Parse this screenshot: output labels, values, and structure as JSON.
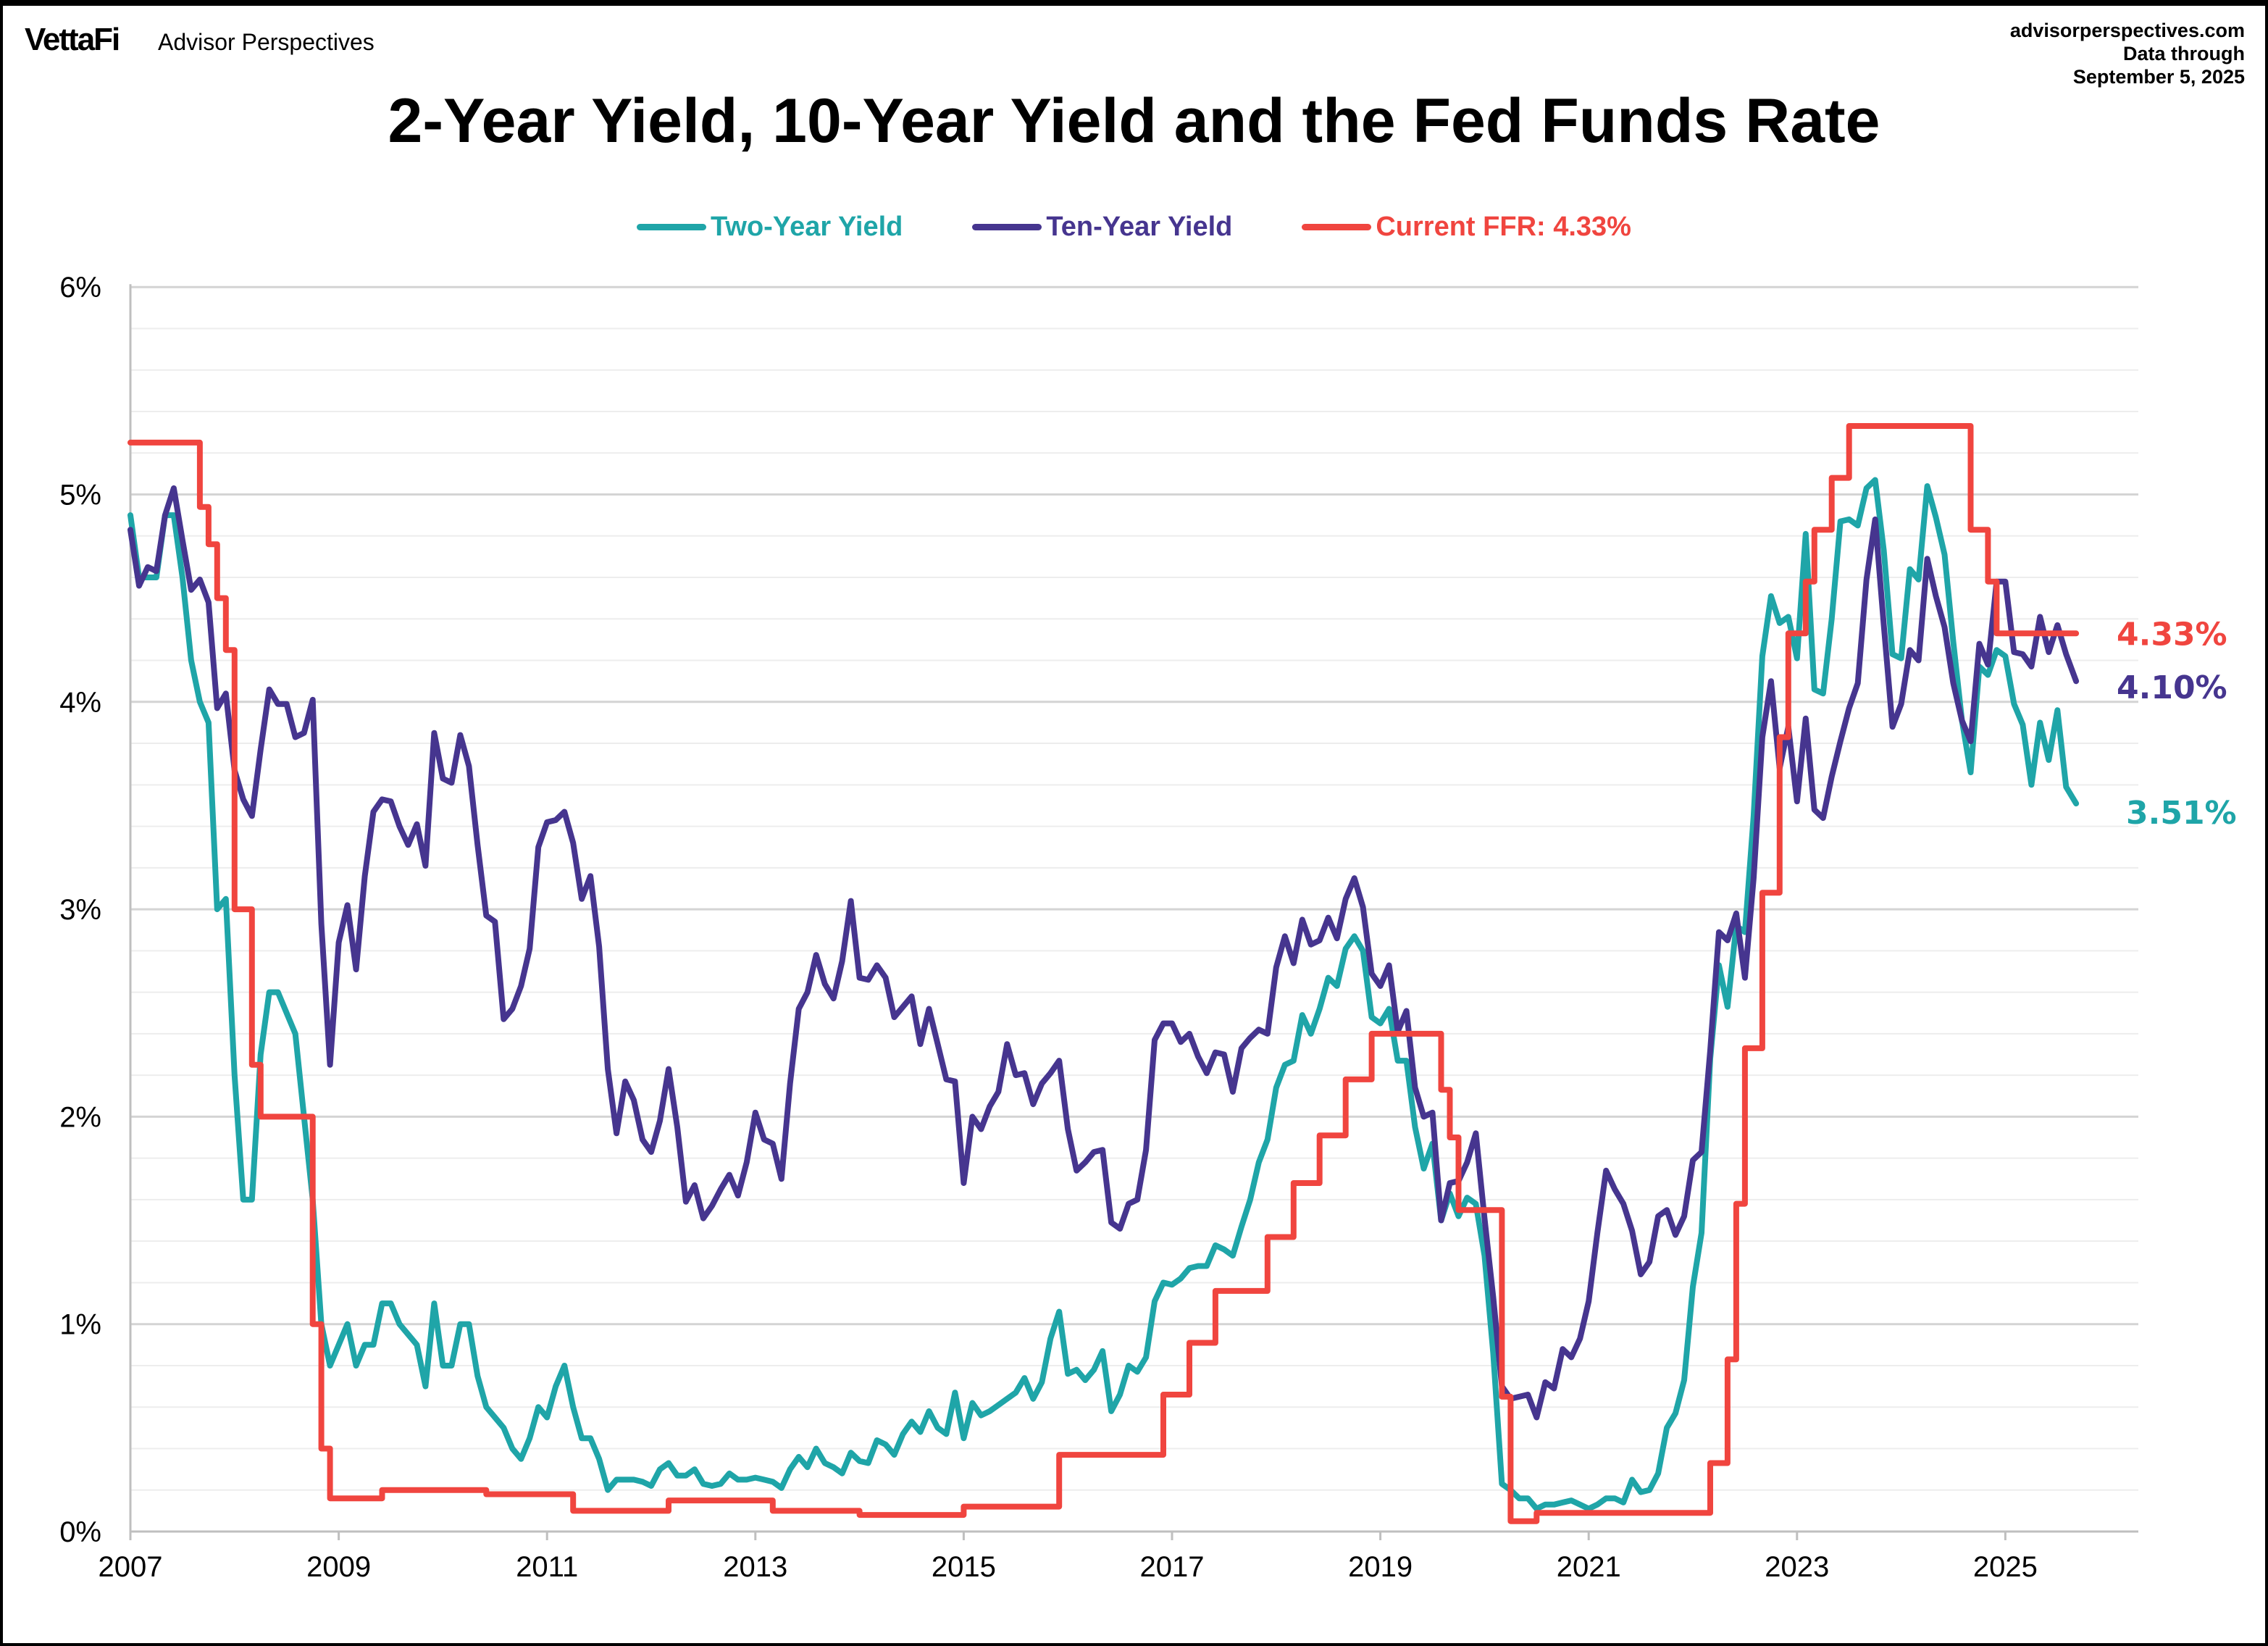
{
  "header": {
    "logo": "VettaFi",
    "brand": "Advisor Perspectives",
    "source_lines": [
      "advisorperspectives.com",
      "Data through",
      "September 5, 2025"
    ]
  },
  "colors": {
    "two_year": "#1FA5A8",
    "ten_year": "#46358F",
    "ffr": "#F0453F",
    "grid_minor": "#EDEDED",
    "grid_major": "#D4D4D4"
  },
  "chart_data": {
    "type": "line",
    "title": "2-Year Yield, 10-Year Yield and the Fed Funds Rate",
    "xlabel": "",
    "ylabel": "",
    "xlim": [
      "2007-01",
      "2026-03"
    ],
    "ylim": [
      0,
      6
    ],
    "y_ticks": [
      "0%",
      "1%",
      "2%",
      "3%",
      "4%",
      "5%",
      "6%"
    ],
    "x_ticks": [
      "2007",
      "2009",
      "2011",
      "2013",
      "2015",
      "2017",
      "2019",
      "2021",
      "2023",
      "2025"
    ],
    "grid": "horizontal, minor every 0.2%",
    "legend_position": "top-center",
    "series": [
      {
        "name": "Two-Year Yield",
        "end_label": "3.51%",
        "end_value": 3.51,
        "values_by_year_monthly": {
          "2007": [
            4.9,
            4.6,
            4.6,
            4.6,
            4.9,
            4.9,
            4.6,
            4.2,
            4.0,
            3.9,
            3.0,
            3.05
          ],
          "2008": [
            2.2,
            1.6,
            1.6,
            2.3,
            2.6,
            2.6,
            2.5,
            2.4,
            2.0,
            1.6,
            1.0,
            0.8
          ],
          "2009": [
            0.9,
            1.0,
            0.8,
            0.9,
            0.9,
            1.1,
            1.1,
            1.0,
            0.95,
            0.9,
            0.7,
            1.1
          ],
          "2010": [
            0.8,
            0.8,
            1.0,
            1.0,
            0.75,
            0.6,
            0.55,
            0.5,
            0.4,
            0.35,
            0.45,
            0.6
          ],
          "2011": [
            0.55,
            0.7,
            0.8,
            0.6,
            0.45,
            0.45,
            0.35,
            0.2,
            0.25,
            0.25,
            0.25,
            0.24
          ],
          "2012": [
            0.22,
            0.3,
            0.33,
            0.27,
            0.27,
            0.3,
            0.23,
            0.22,
            0.23,
            0.28,
            0.25,
            0.25
          ],
          "2013": [
            0.26,
            0.25,
            0.24,
            0.21,
            0.3,
            0.36,
            0.31,
            0.4,
            0.33,
            0.31,
            0.28,
            0.38
          ],
          "2014": [
            0.34,
            0.33,
            0.44,
            0.42,
            0.37,
            0.47,
            0.53,
            0.48,
            0.58,
            0.5,
            0.47,
            0.67
          ],
          "2015": [
            0.45,
            0.62,
            0.56,
            0.58,
            0.61,
            0.64,
            0.67,
            0.74,
            0.64,
            0.72,
            0.93,
            1.06
          ],
          "2016": [
            0.76,
            0.78,
            0.73,
            0.78,
            0.87,
            0.58,
            0.66,
            0.8,
            0.77,
            0.84,
            1.11,
            1.2
          ],
          "2017": [
            1.19,
            1.22,
            1.27,
            1.28,
            1.28,
            1.38,
            1.36,
            1.33,
            1.47,
            1.6,
            1.78,
            1.89
          ],
          "2018": [
            2.14,
            2.25,
            2.27,
            2.49,
            2.4,
            2.52,
            2.67,
            2.63,
            2.81,
            2.87,
            2.8,
            2.48
          ],
          "2019": [
            2.45,
            2.52,
            2.27,
            2.27,
            1.95,
            1.75,
            1.87,
            1.5,
            1.63,
            1.52,
            1.61,
            1.58
          ],
          "2020": [
            1.33,
            0.86,
            0.23,
            0.2,
            0.16,
            0.16,
            0.11,
            0.13,
            0.13,
            0.14,
            0.15,
            0.13
          ],
          "2021": [
            0.11,
            0.13,
            0.16,
            0.16,
            0.14,
            0.25,
            0.19,
            0.2,
            0.28,
            0.5,
            0.57,
            0.73
          ],
          "2022": [
            1.18,
            1.44,
            2.28,
            2.73,
            2.53,
            2.92,
            2.89,
            3.45,
            4.22,
            4.51,
            4.38,
            4.41
          ],
          "2023": [
            4.21,
            4.81,
            4.06,
            4.04,
            4.4,
            4.87,
            4.88,
            4.85,
            5.03,
            5.07,
            4.73,
            4.23
          ],
          "2024": [
            4.21,
            4.64,
            4.59,
            5.04,
            4.89,
            4.71,
            4.29,
            3.91,
            3.66,
            4.17,
            4.13,
            4.25
          ],
          "2025": [
            4.22,
            3.99,
            3.89,
            3.6,
            3.9,
            3.72,
            3.96,
            3.59,
            3.51
          ]
        }
      },
      {
        "name": "Ten-Year Yield",
        "end_label": "4.10%",
        "end_value": 4.1,
        "values_by_year_monthly": {
          "2007": [
            4.83,
            4.56,
            4.65,
            4.63,
            4.9,
            5.03,
            4.78,
            4.54,
            4.59,
            4.48,
            3.97,
            4.04
          ],
          "2008": [
            3.67,
            3.53,
            3.45,
            3.77,
            4.06,
            3.99,
            3.99,
            3.83,
            3.85,
            4.01,
            2.93,
            2.25
          ],
          "2009": [
            2.84,
            3.02,
            2.71,
            3.16,
            3.47,
            3.53,
            3.52,
            3.4,
            3.31,
            3.41,
            3.21,
            3.85
          ],
          "2010": [
            3.63,
            3.61,
            3.84,
            3.69,
            3.31,
            2.97,
            2.94,
            2.47,
            2.52,
            2.63,
            2.81,
            3.3
          ],
          "2011": [
            3.42,
            3.43,
            3.47,
            3.32,
            3.05,
            3.16,
            2.82,
            2.23,
            1.92,
            2.17,
            2.08,
            1.89
          ],
          "2012": [
            1.83,
            1.98,
            2.23,
            1.95,
            1.59,
            1.67,
            1.51,
            1.57,
            1.65,
            1.72,
            1.62,
            1.78
          ],
          "2013": [
            2.02,
            1.89,
            1.87,
            1.7,
            2.16,
            2.52,
            2.6,
            2.78,
            2.64,
            2.57,
            2.75,
            3.04
          ],
          "2014": [
            2.67,
            2.66,
            2.73,
            2.67,
            2.48,
            2.53,
            2.58,
            2.35,
            2.52,
            2.35,
            2.18,
            2.17
          ],
          "2015": [
            1.68,
            2.0,
            1.94,
            2.05,
            2.12,
            2.35,
            2.2,
            2.21,
            2.06,
            2.16,
            2.21,
            2.27
          ],
          "2016": [
            1.94,
            1.74,
            1.78,
            1.83,
            1.84,
            1.49,
            1.46,
            1.58,
            1.6,
            1.84,
            2.37,
            2.45
          ],
          "2017": [
            2.45,
            2.36,
            2.4,
            2.29,
            2.21,
            2.31,
            2.3,
            2.12,
            2.33,
            2.38,
            2.42,
            2.4
          ],
          "2018": [
            2.72,
            2.87,
            2.74,
            2.95,
            2.83,
            2.85,
            2.96,
            2.86,
            3.05,
            3.15,
            3.01,
            2.69
          ],
          "2019": [
            2.63,
            2.73,
            2.41,
            2.51,
            2.14,
            2.0,
            2.02,
            1.5,
            1.68,
            1.69,
            1.78,
            1.92
          ],
          "2020": [
            1.51,
            1.13,
            0.7,
            0.64,
            0.65,
            0.66,
            0.55,
            0.72,
            0.69,
            0.88,
            0.84,
            0.93
          ],
          "2021": [
            1.11,
            1.44,
            1.74,
            1.65,
            1.58,
            1.45,
            1.24,
            1.3,
            1.52,
            1.55,
            1.43,
            1.52
          ],
          "2022": [
            1.79,
            1.83,
            2.32,
            2.89,
            2.85,
            2.98,
            2.67,
            3.15,
            3.83,
            4.1,
            3.68,
            3.88
          ],
          "2023": [
            3.52,
            3.92,
            3.48,
            3.44,
            3.64,
            3.81,
            3.97,
            4.09,
            4.59,
            4.88,
            4.37,
            3.88
          ],
          "2024": [
            3.99,
            4.25,
            4.2,
            4.69,
            4.51,
            4.36,
            4.09,
            3.91,
            3.81,
            4.28,
            4.18,
            4.58
          ],
          "2025": [
            4.58,
            4.24,
            4.23,
            4.17,
            4.41,
            4.24,
            4.37,
            4.23,
            4.1
          ]
        }
      },
      {
        "name": "Current FFR: 4.33%",
        "end_label": "4.33%",
        "end_value": 4.33,
        "steps": [
          [
            "2007-01",
            5.25
          ],
          [
            "2007-09",
            4.94
          ],
          [
            "2007-10",
            4.76
          ],
          [
            "2007-11",
            4.5
          ],
          [
            "2007-12",
            4.25
          ],
          [
            "2008-01",
            3.0
          ],
          [
            "2008-03",
            2.25
          ],
          [
            "2008-04",
            2.0
          ],
          [
            "2008-10",
            1.0
          ],
          [
            "2008-11",
            0.4
          ],
          [
            "2008-12",
            0.16
          ],
          [
            "2009-06",
            0.2
          ],
          [
            "2010-06",
            0.18
          ],
          [
            "2011-04",
            0.1
          ],
          [
            "2012-03",
            0.15
          ],
          [
            "2013-03",
            0.1
          ],
          [
            "2014-01",
            0.08
          ],
          [
            "2015-01",
            0.12
          ],
          [
            "2015-12",
            0.37
          ],
          [
            "2016-12",
            0.66
          ],
          [
            "2017-03",
            0.91
          ],
          [
            "2017-06",
            1.16
          ],
          [
            "2017-12",
            1.42
          ],
          [
            "2018-03",
            1.68
          ],
          [
            "2018-06",
            1.91
          ],
          [
            "2018-09",
            2.18
          ],
          [
            "2018-12",
            2.4
          ],
          [
            "2019-08",
            2.13
          ],
          [
            "2019-09",
            1.9
          ],
          [
            "2019-10",
            1.55
          ],
          [
            "2020-03",
            0.65
          ],
          [
            "2020-04",
            0.05
          ],
          [
            "2020-07",
            0.09
          ],
          [
            "2022-03",
            0.33
          ],
          [
            "2022-05",
            0.83
          ],
          [
            "2022-06",
            1.58
          ],
          [
            "2022-07",
            2.33
          ],
          [
            "2022-09",
            3.08
          ],
          [
            "2022-11",
            3.83
          ],
          [
            "2022-12",
            4.33
          ],
          [
            "2023-02",
            4.58
          ],
          [
            "2023-03",
            4.83
          ],
          [
            "2023-05",
            5.08
          ],
          [
            "2023-07",
            5.33
          ],
          [
            "2024-09",
            4.83
          ],
          [
            "2024-11",
            4.58
          ],
          [
            "2024-12",
            4.33
          ],
          [
            "2025-09",
            4.33
          ]
        ]
      }
    ]
  }
}
